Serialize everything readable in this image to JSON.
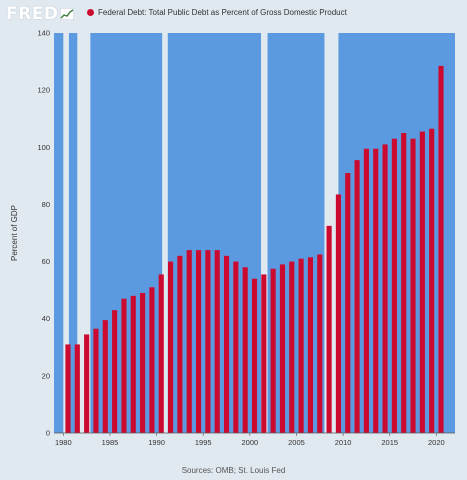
{
  "header": {
    "logo_text": "FRED",
    "logo_icon": "fred-chart-mark-icon",
    "legend_label": "Federal Debt: Total Public Debt as Percent of Gross Domestic Product",
    "legend_color": "#cc0a2f"
  },
  "footer": {
    "source": "Sources: OMB; St. Louis Fed"
  },
  "colors": {
    "plot_background": "#5b9ae0",
    "recession_shading": "#e1e9f0",
    "bar": "#cc0a2f",
    "page_background": "#e1e9f0"
  },
  "chart_data": {
    "type": "bar",
    "title": "",
    "xlabel": "",
    "ylabel": "Percent of GDP",
    "xlim": [
      1979,
      2022
    ],
    "ylim": [
      0,
      140
    ],
    "y_ticks": [
      0,
      20,
      40,
      60,
      80,
      100,
      120,
      140
    ],
    "x_ticks": [
      1980,
      1985,
      1990,
      1995,
      2000,
      2005,
      2010,
      2015,
      2020
    ],
    "grid": false,
    "legend_position": "top-left",
    "categories": [
      1980,
      1981,
      1982,
      1983,
      1984,
      1985,
      1986,
      1987,
      1988,
      1989,
      1990,
      1991,
      1992,
      1993,
      1994,
      1995,
      1996,
      1997,
      1998,
      1999,
      2000,
      2001,
      2002,
      2003,
      2004,
      2005,
      2006,
      2007,
      2008,
      2009,
      2010,
      2011,
      2012,
      2013,
      2014,
      2015,
      2016,
      2017,
      2018,
      2019,
      2020
    ],
    "values": [
      31,
      31,
      34.5,
      36.5,
      39.5,
      43,
      47,
      48,
      49,
      51,
      55.5,
      60,
      62,
      64,
      64,
      64,
      64,
      62,
      60,
      58,
      54,
      55.5,
      57.5,
      59,
      60,
      61,
      61.5,
      62.5,
      72.5,
      83.5,
      91,
      95.5,
      99.5,
      99.5,
      101,
      103,
      105,
      103,
      105.5,
      106.5,
      128.5
    ],
    "recessions": [
      [
        1980.0,
        1980.6
      ],
      [
        1981.5,
        1982.9
      ],
      [
        1990.6,
        1991.2
      ],
      [
        2001.2,
        2001.9
      ],
      [
        2008.0,
        2009.5
      ]
    ]
  }
}
